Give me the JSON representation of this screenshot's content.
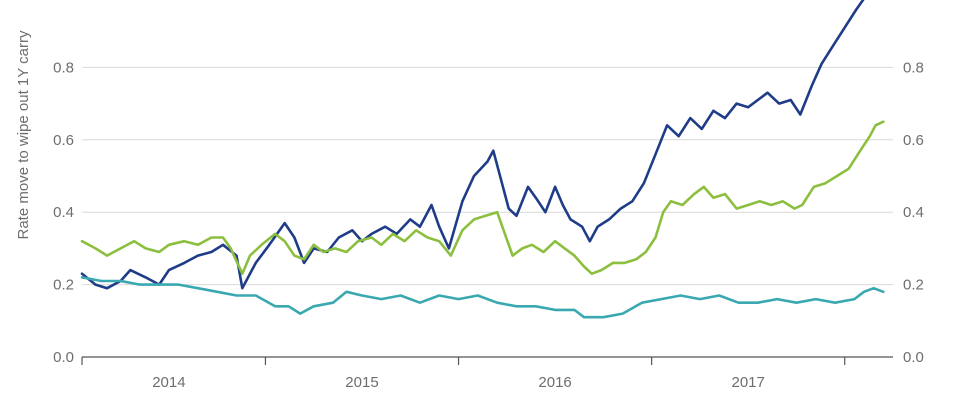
{
  "chart_data": {
    "type": "line",
    "ylabel": "Rate move to wipe out 1Y carry",
    "y_left": {
      "min": 0,
      "max": 1.0,
      "ticks": [
        "0.0",
        "0.2",
        "0.4",
        "0.6",
        "0.8"
      ]
    },
    "y_right": {
      "min": 0,
      "max": 1.0,
      "ticks": [
        "0.0",
        "0.2",
        "0.4",
        "0.6",
        "0.8"
      ]
    },
    "x_range": [
      2013.55,
      2017.75
    ],
    "x_tick_labels": [
      {
        "label": "2014",
        "x": 2014.0
      },
      {
        "label": "2015",
        "x": 2015.0
      },
      {
        "label": "2016",
        "x": 2016.0
      },
      {
        "label": "2017",
        "x": 2017.0
      }
    ],
    "x_tick_marks": [
      2013.55,
      2014.5,
      2015.5,
      2016.5,
      2017.5
    ],
    "grid": true,
    "series": [
      {
        "color": "#1f3c88",
        "points": [
          [
            2013.55,
            0.23
          ],
          [
            2013.62,
            0.2
          ],
          [
            2013.68,
            0.19
          ],
          [
            2013.75,
            0.21
          ],
          [
            2013.8,
            0.24
          ],
          [
            2013.88,
            0.22
          ],
          [
            2013.95,
            0.2
          ],
          [
            2014.0,
            0.24
          ],
          [
            2014.08,
            0.26
          ],
          [
            2014.15,
            0.28
          ],
          [
            2014.22,
            0.29
          ],
          [
            2014.28,
            0.31
          ],
          [
            2014.35,
            0.28
          ],
          [
            2014.38,
            0.19
          ],
          [
            2014.45,
            0.26
          ],
          [
            2014.52,
            0.31
          ],
          [
            2014.6,
            0.37
          ],
          [
            2014.65,
            0.33
          ],
          [
            2014.7,
            0.26
          ],
          [
            2014.75,
            0.3
          ],
          [
            2014.82,
            0.29
          ],
          [
            2014.88,
            0.33
          ],
          [
            2014.95,
            0.35
          ],
          [
            2015.0,
            0.32
          ],
          [
            2015.05,
            0.34
          ],
          [
            2015.12,
            0.36
          ],
          [
            2015.18,
            0.34
          ],
          [
            2015.25,
            0.38
          ],
          [
            2015.3,
            0.36
          ],
          [
            2015.36,
            0.42
          ],
          [
            2015.4,
            0.36
          ],
          [
            2015.45,
            0.3
          ],
          [
            2015.52,
            0.43
          ],
          [
            2015.58,
            0.5
          ],
          [
            2015.65,
            0.54
          ],
          [
            2015.68,
            0.57
          ],
          [
            2015.72,
            0.49
          ],
          [
            2015.76,
            0.41
          ],
          [
            2015.8,
            0.39
          ],
          [
            2015.86,
            0.47
          ],
          [
            2015.9,
            0.44
          ],
          [
            2015.95,
            0.4
          ],
          [
            2016.0,
            0.47
          ],
          [
            2016.04,
            0.42
          ],
          [
            2016.08,
            0.38
          ],
          [
            2016.14,
            0.36
          ],
          [
            2016.18,
            0.32
          ],
          [
            2016.22,
            0.36
          ],
          [
            2016.28,
            0.38
          ],
          [
            2016.34,
            0.41
          ],
          [
            2016.4,
            0.43
          ],
          [
            2016.46,
            0.48
          ],
          [
            2016.52,
            0.56
          ],
          [
            2016.58,
            0.64
          ],
          [
            2016.64,
            0.61
          ],
          [
            2016.7,
            0.66
          ],
          [
            2016.76,
            0.63
          ],
          [
            2016.82,
            0.68
          ],
          [
            2016.88,
            0.66
          ],
          [
            2016.94,
            0.7
          ],
          [
            2017.0,
            0.69
          ],
          [
            2017.05,
            0.71
          ],
          [
            2017.1,
            0.73
          ],
          [
            2017.16,
            0.7
          ],
          [
            2017.22,
            0.71
          ],
          [
            2017.27,
            0.67
          ],
          [
            2017.33,
            0.75
          ],
          [
            2017.38,
            0.81
          ],
          [
            2017.44,
            0.86
          ],
          [
            2017.5,
            0.91
          ],
          [
            2017.56,
            0.96
          ],
          [
            2017.6,
            0.99
          ],
          [
            2017.64,
            1.0
          ]
        ]
      },
      {
        "color": "#8cbf3f",
        "points": [
          [
            2013.55,
            0.32
          ],
          [
            2013.62,
            0.3
          ],
          [
            2013.68,
            0.28
          ],
          [
            2013.75,
            0.3
          ],
          [
            2013.82,
            0.32
          ],
          [
            2013.88,
            0.3
          ],
          [
            2013.95,
            0.29
          ],
          [
            2014.0,
            0.31
          ],
          [
            2014.08,
            0.32
          ],
          [
            2014.15,
            0.31
          ],
          [
            2014.22,
            0.33
          ],
          [
            2014.28,
            0.33
          ],
          [
            2014.32,
            0.3
          ],
          [
            2014.38,
            0.23
          ],
          [
            2014.42,
            0.28
          ],
          [
            2014.48,
            0.31
          ],
          [
            2014.55,
            0.34
          ],
          [
            2014.6,
            0.32
          ],
          [
            2014.65,
            0.28
          ],
          [
            2014.7,
            0.27
          ],
          [
            2014.75,
            0.31
          ],
          [
            2014.8,
            0.29
          ],
          [
            2014.86,
            0.3
          ],
          [
            2014.92,
            0.29
          ],
          [
            2014.98,
            0.32
          ],
          [
            2015.05,
            0.33
          ],
          [
            2015.1,
            0.31
          ],
          [
            2015.16,
            0.34
          ],
          [
            2015.22,
            0.32
          ],
          [
            2015.28,
            0.35
          ],
          [
            2015.34,
            0.33
          ],
          [
            2015.4,
            0.32
          ],
          [
            2015.46,
            0.28
          ],
          [
            2015.52,
            0.35
          ],
          [
            2015.58,
            0.38
          ],
          [
            2015.64,
            0.39
          ],
          [
            2015.7,
            0.4
          ],
          [
            2015.74,
            0.34
          ],
          [
            2015.78,
            0.28
          ],
          [
            2015.83,
            0.3
          ],
          [
            2015.88,
            0.31
          ],
          [
            2015.94,
            0.29
          ],
          [
            2016.0,
            0.32
          ],
          [
            2016.05,
            0.3
          ],
          [
            2016.1,
            0.28
          ],
          [
            2016.15,
            0.25
          ],
          [
            2016.19,
            0.23
          ],
          [
            2016.24,
            0.24
          ],
          [
            2016.3,
            0.26
          ],
          [
            2016.36,
            0.26
          ],
          [
            2016.42,
            0.27
          ],
          [
            2016.47,
            0.29
          ],
          [
            2016.52,
            0.33
          ],
          [
            2016.56,
            0.4
          ],
          [
            2016.6,
            0.43
          ],
          [
            2016.66,
            0.42
          ],
          [
            2016.72,
            0.45
          ],
          [
            2016.77,
            0.47
          ],
          [
            2016.82,
            0.44
          ],
          [
            2016.88,
            0.45
          ],
          [
            2016.94,
            0.41
          ],
          [
            2017.0,
            0.42
          ],
          [
            2017.06,
            0.43
          ],
          [
            2017.12,
            0.42
          ],
          [
            2017.18,
            0.43
          ],
          [
            2017.24,
            0.41
          ],
          [
            2017.28,
            0.42
          ],
          [
            2017.34,
            0.47
          ],
          [
            2017.4,
            0.48
          ],
          [
            2017.46,
            0.5
          ],
          [
            2017.52,
            0.52
          ],
          [
            2017.58,
            0.57
          ],
          [
            2017.63,
            0.61
          ],
          [
            2017.66,
            0.64
          ],
          [
            2017.7,
            0.65
          ]
        ]
      },
      {
        "color": "#3aa8b0",
        "points": [
          [
            2013.55,
            0.22
          ],
          [
            2013.65,
            0.21
          ],
          [
            2013.75,
            0.21
          ],
          [
            2013.85,
            0.2
          ],
          [
            2013.95,
            0.2
          ],
          [
            2014.05,
            0.2
          ],
          [
            2014.15,
            0.19
          ],
          [
            2014.25,
            0.18
          ],
          [
            2014.35,
            0.17
          ],
          [
            2014.45,
            0.17
          ],
          [
            2014.55,
            0.14
          ],
          [
            2014.62,
            0.14
          ],
          [
            2014.68,
            0.12
          ],
          [
            2014.75,
            0.14
          ],
          [
            2014.85,
            0.15
          ],
          [
            2014.92,
            0.18
          ],
          [
            2015.0,
            0.17
          ],
          [
            2015.1,
            0.16
          ],
          [
            2015.2,
            0.17
          ],
          [
            2015.3,
            0.15
          ],
          [
            2015.4,
            0.17
          ],
          [
            2015.5,
            0.16
          ],
          [
            2015.6,
            0.17
          ],
          [
            2015.7,
            0.15
          ],
          [
            2015.8,
            0.14
          ],
          [
            2015.9,
            0.14
          ],
          [
            2016.0,
            0.13
          ],
          [
            2016.1,
            0.13
          ],
          [
            2016.15,
            0.11
          ],
          [
            2016.25,
            0.11
          ],
          [
            2016.35,
            0.12
          ],
          [
            2016.45,
            0.15
          ],
          [
            2016.55,
            0.16
          ],
          [
            2016.65,
            0.17
          ],
          [
            2016.75,
            0.16
          ],
          [
            2016.85,
            0.17
          ],
          [
            2016.95,
            0.15
          ],
          [
            2017.05,
            0.15
          ],
          [
            2017.15,
            0.16
          ],
          [
            2017.25,
            0.15
          ],
          [
            2017.35,
            0.16
          ],
          [
            2017.45,
            0.15
          ],
          [
            2017.55,
            0.16
          ],
          [
            2017.6,
            0.18
          ],
          [
            2017.65,
            0.19
          ],
          [
            2017.7,
            0.18
          ]
        ]
      }
    ]
  }
}
